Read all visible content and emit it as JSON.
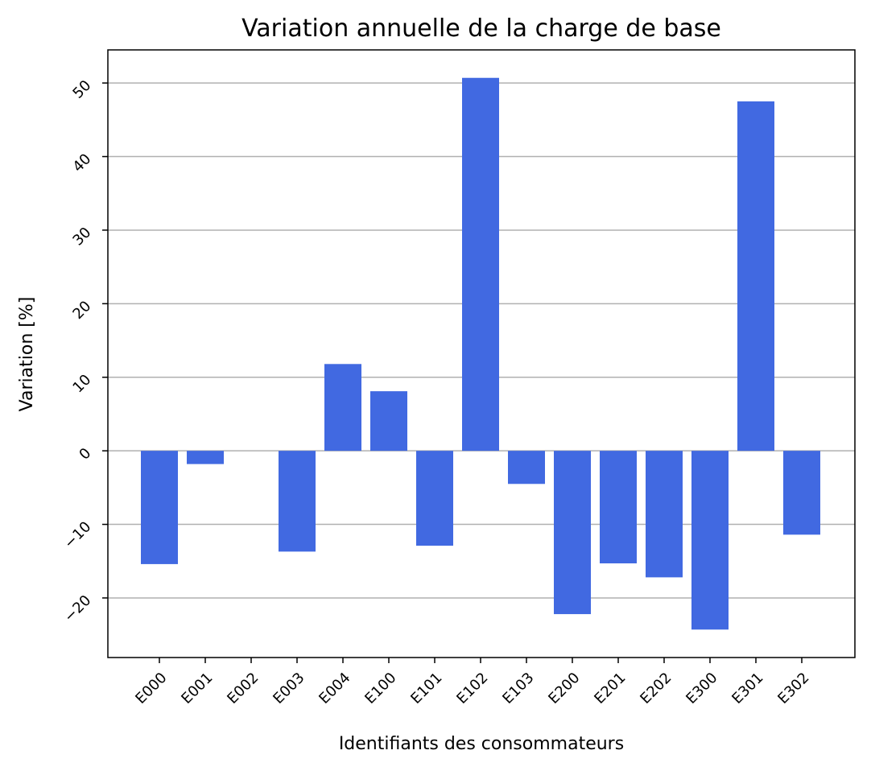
{
  "chart_data": {
    "type": "bar",
    "title": "Variation annuelle de la charge de base",
    "xlabel": "Identifiants des consommateurs",
    "ylabel": "Variation [%]",
    "categories": [
      "E000",
      "E001",
      "E002",
      "E003",
      "E004",
      "E100",
      "E101",
      "E102",
      "E103",
      "E200",
      "E201",
      "E202",
      "E300",
      "E301",
      "E302"
    ],
    "values": [
      -15.4,
      -1.8,
      0,
      -13.7,
      11.8,
      8.1,
      -12.9,
      50.7,
      -4.5,
      -22.2,
      -15.3,
      -17.2,
      -24.3,
      47.5,
      -11.4
    ],
    "yticks": [
      -20,
      -10,
      0,
      10,
      20,
      30,
      40,
      50
    ],
    "ytick_labels": [
      "−20",
      "−10",
      "0",
      "10",
      "20",
      "30",
      "40",
      "50"
    ],
    "ylim": [
      -28.1,
      54.5
    ],
    "grid": "y",
    "bar_color": "#4169e1"
  }
}
